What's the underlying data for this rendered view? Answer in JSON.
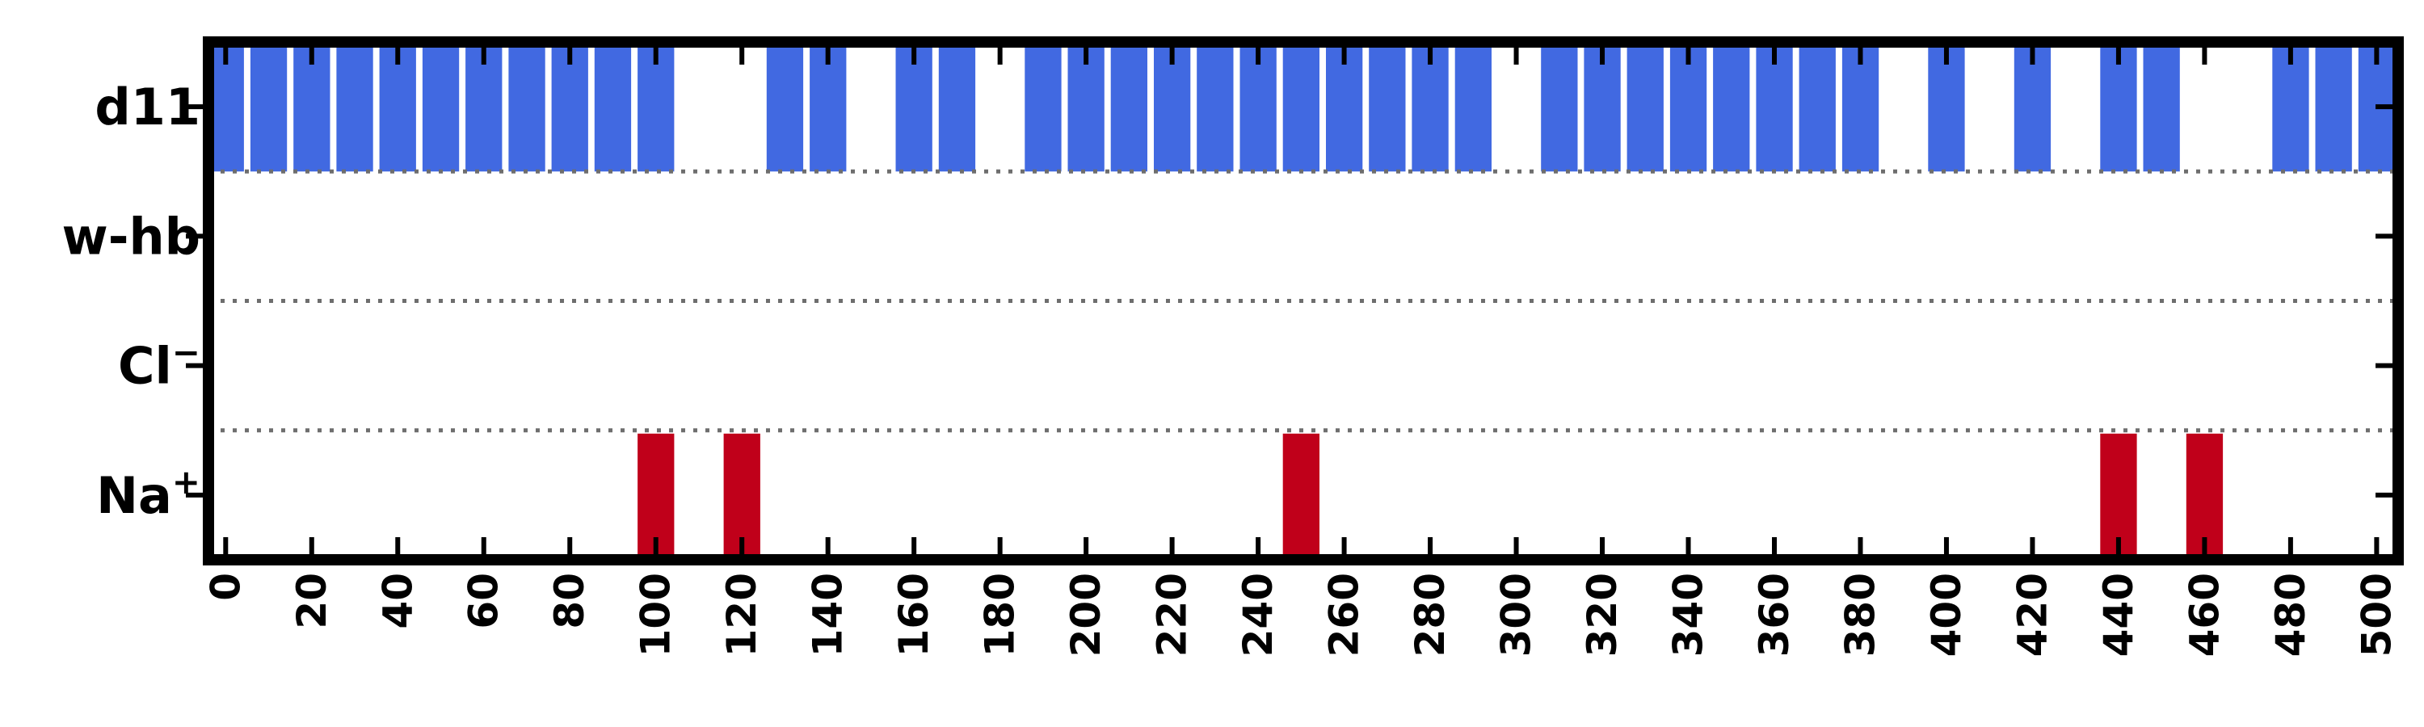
{
  "chart_data": {
    "type": "bar",
    "orientation": "event-raster",
    "xlim": [
      -4,
      505
    ],
    "xticks": [
      0,
      20,
      40,
      60,
      80,
      100,
      120,
      140,
      160,
      180,
      200,
      220,
      240,
      260,
      280,
      300,
      320,
      340,
      360,
      380,
      400,
      420,
      440,
      460,
      480,
      500
    ],
    "xtick_labels": [
      "0",
      "20",
      "40",
      "60",
      "80",
      "100",
      "120",
      "140",
      "160",
      "180",
      "200",
      "220",
      "240",
      "260",
      "280",
      "300",
      "320",
      "340",
      "360",
      "380",
      "400",
      "420",
      "440",
      "460",
      "480",
      "500"
    ],
    "rows": [
      {
        "label": "d11",
        "label_main": "d11",
        "label_sup": "",
        "color": "#4169e1",
        "events": [
          0,
          10,
          20,
          30,
          40,
          50,
          60,
          70,
          80,
          90,
          100,
          130,
          140,
          160,
          170,
          190,
          200,
          210,
          220,
          230,
          240,
          250,
          260,
          270,
          280,
          290,
          310,
          320,
          330,
          340,
          350,
          360,
          370,
          380,
          400,
          420,
          440,
          450,
          480,
          490,
          500
        ]
      },
      {
        "label": "w-hb",
        "label_main": "w-hb",
        "label_sup": "",
        "color": "#4169e1",
        "events": []
      },
      {
        "label": "Cl−",
        "label_main": "Cl",
        "label_sup": "−",
        "color": "#4169e1",
        "events": []
      },
      {
        "label": "Na+",
        "label_main": "Na",
        "label_sup": "+",
        "color": "#c0001a",
        "events": [
          100,
          120,
          250,
          440,
          460
        ]
      }
    ],
    "bar_width": 8.5,
    "separators": "dotted",
    "grid": false,
    "legend": "none"
  }
}
